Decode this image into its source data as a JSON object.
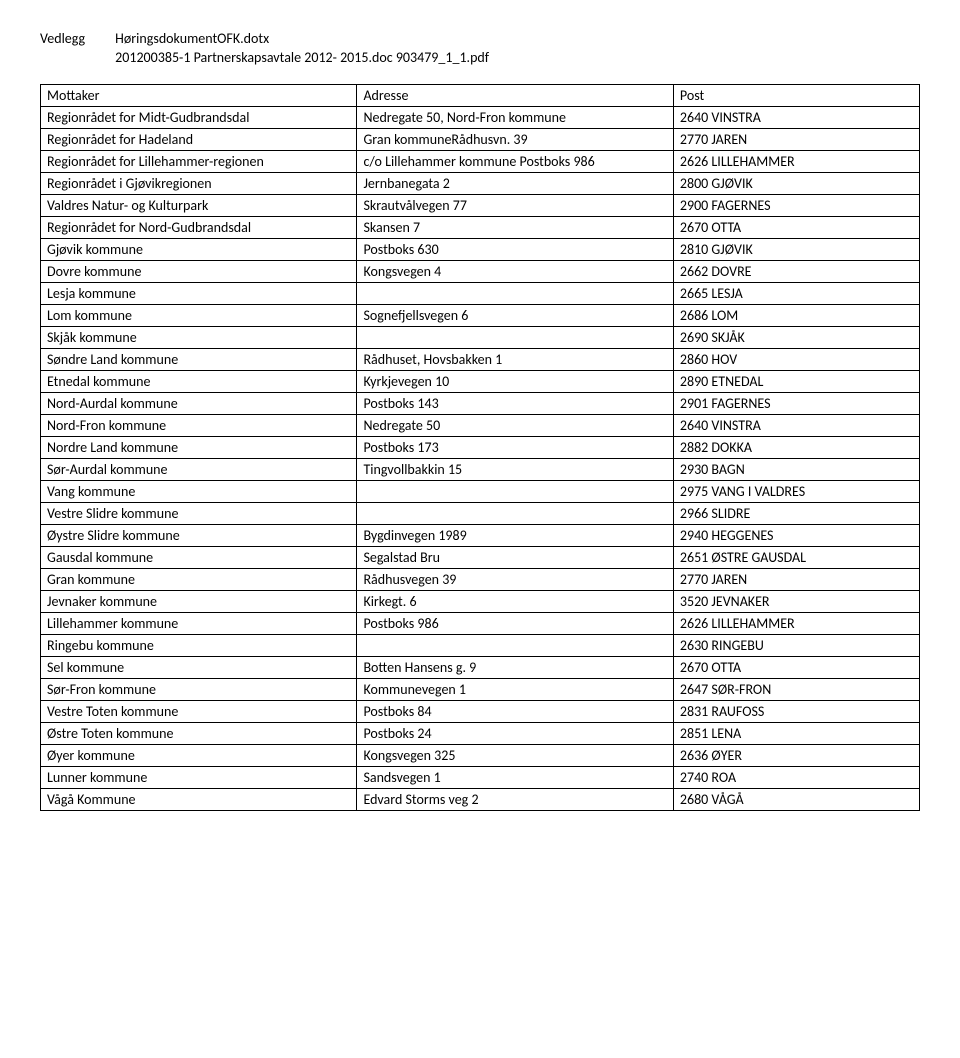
{
  "header": {
    "vedlegg_label": "Vedlegg",
    "vedlegg_file": "HøringsdokumentOFK.dotx",
    "second_line": "201200385-1 Partnerskapsavtale 2012- 2015.doc 903479_1_1.pdf"
  },
  "table": {
    "columns": [
      "Mottaker",
      "Adresse",
      "Post"
    ],
    "rows": [
      [
        "Regionrådet for Midt-Gudbrandsdal",
        "Nedregate 50, Nord-Fron kommune",
        "2640 VINSTRA"
      ],
      [
        "Regionrådet for Hadeland",
        "Gran kommuneRådhusvn. 39",
        "2770 JAREN"
      ],
      [
        "Regionrådet for Lillehammer-regionen",
        "c/o Lillehammer kommune Postboks 986",
        "2626 LILLEHAMMER"
      ],
      [
        "Regionrådet i Gjøvikregionen",
        "Jernbanegata 2",
        "2800 GJØVIK"
      ],
      [
        "Valdres Natur- og Kulturpark",
        "Skrautvålvegen 77",
        "2900 FAGERNES"
      ],
      [
        "Regionrådet for Nord-Gudbrandsdal",
        "Skansen 7",
        "2670 OTTA"
      ],
      [
        "Gjøvik kommune",
        "Postboks 630",
        "2810 GJØVIK"
      ],
      [
        "Dovre kommune",
        "Kongsvegen 4",
        "2662 DOVRE"
      ],
      [
        "Lesja kommune",
        "",
        "2665 LESJA"
      ],
      [
        "Lom kommune",
        "Sognefjellsvegen 6",
        "2686 LOM"
      ],
      [
        "Skjåk kommune",
        "",
        "2690 SKJÅK"
      ],
      [
        "Søndre Land kommune",
        "Rådhuset, Hovsbakken 1",
        "2860 HOV"
      ],
      [
        "Etnedal kommune",
        "Kyrkjevegen 10",
        "2890 ETNEDAL"
      ],
      [
        "Nord-Aurdal kommune",
        "Postboks 143",
        "2901 FAGERNES"
      ],
      [
        "Nord-Fron kommune",
        "Nedregate 50",
        "2640 VINSTRA"
      ],
      [
        "Nordre Land kommune",
        "Postboks 173",
        "2882 DOKKA"
      ],
      [
        "Sør-Aurdal kommune",
        "Tingvollbakkin 15",
        "2930 BAGN"
      ],
      [
        "Vang kommune",
        "",
        "2975 VANG I VALDRES"
      ],
      [
        "Vestre Slidre kommune",
        "",
        "2966 SLIDRE"
      ],
      [
        "Øystre Slidre kommune",
        "Bygdinvegen 1989",
        "2940 HEGGENES"
      ],
      [
        "Gausdal kommune",
        "Segalstad Bru",
        "2651 ØSTRE GAUSDAL"
      ],
      [
        "Gran kommune",
        "Rådhusvegen 39",
        "2770 JAREN"
      ],
      [
        "Jevnaker kommune",
        "Kirkegt. 6",
        "3520 JEVNAKER"
      ],
      [
        "Lillehammer kommune",
        "Postboks 986",
        "2626 LILLEHAMMER"
      ],
      [
        "Ringebu kommune",
        "",
        "2630 RINGEBU"
      ],
      [
        "Sel kommune",
        "Botten Hansens g. 9",
        "2670 OTTA"
      ],
      [
        "Sør-Fron kommune",
        "Kommunevegen 1",
        "2647 SØR-FRON"
      ],
      [
        "Vestre Toten kommune",
        "Postboks 84",
        "2831 RAUFOSS"
      ],
      [
        "Østre Toten kommune",
        "Postboks 24",
        "2851 LENA"
      ],
      [
        "Øyer kommune",
        "Kongsvegen 325",
        "2636 ØYER"
      ],
      [
        "Lunner kommune",
        "Sandsvegen 1",
        "2740 ROA"
      ],
      [
        "Vågå Kommune",
        "Edvard Storms veg 2",
        "2680 VÅGÅ"
      ]
    ]
  }
}
